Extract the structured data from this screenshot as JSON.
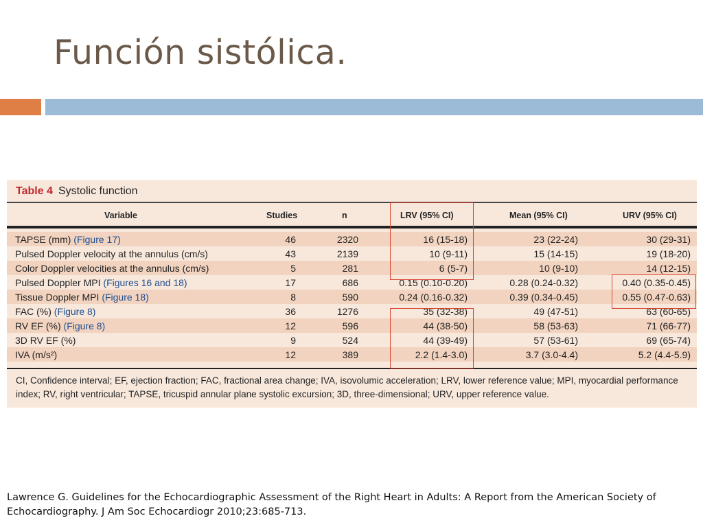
{
  "slide": {
    "title": "Función sistólica.",
    "citation": "Lawrence G. Guidelines for the Echocardiographic Assessment of the Right Heart in Adults: A Report from the American Society of Echocardiography. J Am Soc Echocardiogr 2010;23:685-713.",
    "accent_colors": {
      "orange": "#e07f45",
      "blue": "#9bbbd6"
    }
  },
  "table": {
    "number": "Table 4",
    "caption": "Systolic function",
    "headers": [
      "Variable",
      "Studies",
      "n",
      "LRV (95% CI)",
      "Mean (95% CI)",
      "URV (95% CI)"
    ],
    "rows": [
      {
        "variable": "TAPSE (mm) ",
        "figure": "(Figure 17)",
        "studies": "46",
        "n": "2320",
        "lrv": "16 (15-18)",
        "mean": "23 (22-24)",
        "urv": "30 (29-31)"
      },
      {
        "variable": "Pulsed Doppler velocity at the annulus (cm/s)",
        "figure": "",
        "studies": "43",
        "n": "2139",
        "lrv": "10 (9-11)",
        "mean": "15 (14-15)",
        "urv": "19 (18-20)"
      },
      {
        "variable": "Color Doppler velocities at the annulus (cm/s)",
        "figure": "",
        "studies": "5",
        "n": "281",
        "lrv": "6 (5-7)",
        "mean": "10 (9-10)",
        "urv": "14 (12-15)"
      },
      {
        "variable": "Pulsed Doppler MPI ",
        "figure": "(Figures 16 and 18)",
        "studies": "17",
        "n": "686",
        "lrv": "0.15 (0.10-0.20)",
        "mean": "0.28 (0.24-0.32)",
        "urv": "0.40 (0.35-0.45)"
      },
      {
        "variable": "Tissue Doppler MPI ",
        "figure": "(Figure 18)",
        "studies": "8",
        "n": "590",
        "lrv": "0.24 (0.16-0.32)",
        "mean": "0.39 (0.34-0.45)",
        "urv": "0.55 (0.47-0.63)"
      },
      {
        "variable": "FAC (%) ",
        "figure": "(Figure 8)",
        "studies": "36",
        "n": "1276",
        "lrv": "35 (32-38)",
        "mean": "49 (47-51)",
        "urv": "63 (60-65)"
      },
      {
        "variable": "RV EF (%) ",
        "figure": "(Figure 8)",
        "studies": "12",
        "n": "596",
        "lrv": "44 (38-50)",
        "mean": "58 (53-63)",
        "urv": "71 (66-77)"
      },
      {
        "variable": "3D RV EF (%)",
        "figure": "",
        "studies": "9",
        "n": "524",
        "lrv": "44 (39-49)",
        "mean": "57 (53-61)",
        "urv": "69 (65-74)"
      },
      {
        "variable": "IVA (m/s²)",
        "figure": "",
        "studies": "12",
        "n": "389",
        "lrv": "2.2 (1.4-3.0)",
        "mean": "3.7 (3.0-4.4)",
        "urv": "5.2 (4.4-5.9)"
      }
    ],
    "footnote": "CI, Confidence interval; EF, ejection fraction; FAC, fractional area change; IVA, isovolumic acceleration; LRV, lower reference value; MPI, myocardial performance index; RV, right ventricular; TAPSE, tricuspid annular plane systolic excursion; 3D, three-dimensional; URV, upper reference value.",
    "colors": {
      "panel": "#f8e8dc",
      "shade": "#f2d3bf",
      "number": "#c1272d",
      "figure_link": "#1d4f91",
      "highlight": "#d9432f"
    }
  }
}
